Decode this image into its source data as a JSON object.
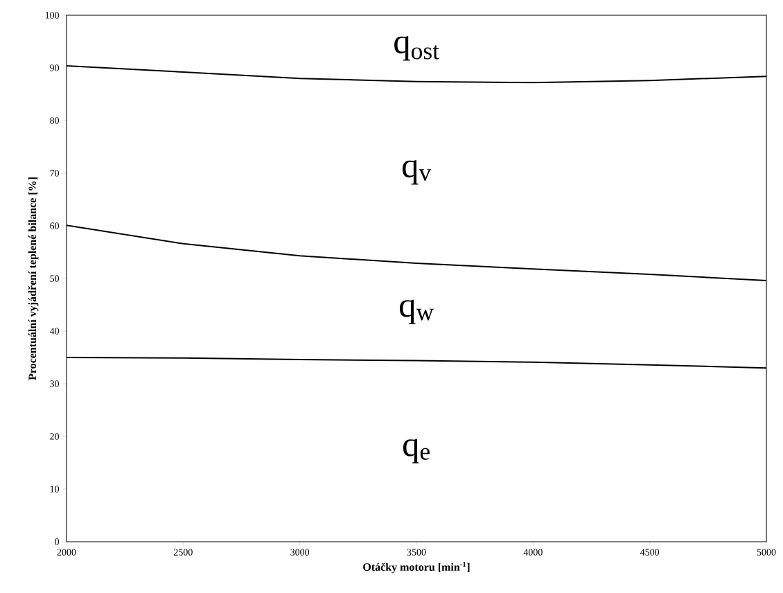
{
  "chart_data": {
    "type": "line",
    "xlabel": "Otáčky motoru [min$^{-1}$]",
    "ylabel": "Procentuální  vyjádření teplené bilance [%]",
    "x": [
      2000,
      2500,
      3000,
      3500,
      4000,
      4500,
      5000
    ],
    "series": [
      {
        "color": "#000000",
        "values": [
          90.4,
          89.2,
          88.0,
          87.4,
          87.2,
          87.6,
          88.4
        ]
      },
      {
        "color": "#000000",
        "values": [
          60.1,
          56.6,
          54.3,
          52.9,
          51.8,
          50.8,
          49.6
        ]
      },
      {
        "color": "#000000",
        "values": [
          35.0,
          34.9,
          34.6,
          34.4,
          34.1,
          33.6,
          33.0
        ]
      }
    ],
    "xlim": [
      2000,
      5000
    ],
    "ylim": [
      0,
      100
    ],
    "xticks": [
      2000,
      2500,
      3000,
      3500,
      4000,
      4500,
      5000
    ],
    "yticks": [
      0,
      10,
      20,
      30,
      40,
      50,
      60,
      70,
      80,
      90,
      100
    ],
    "grid": false,
    "legend": false,
    "marker": "none",
    "line_style": "solid",
    "annotations": [
      "q$_{ost}$",
      "q$_{v}$",
      "q$_{w}$",
      "q$_{e}$"
    ]
  }
}
